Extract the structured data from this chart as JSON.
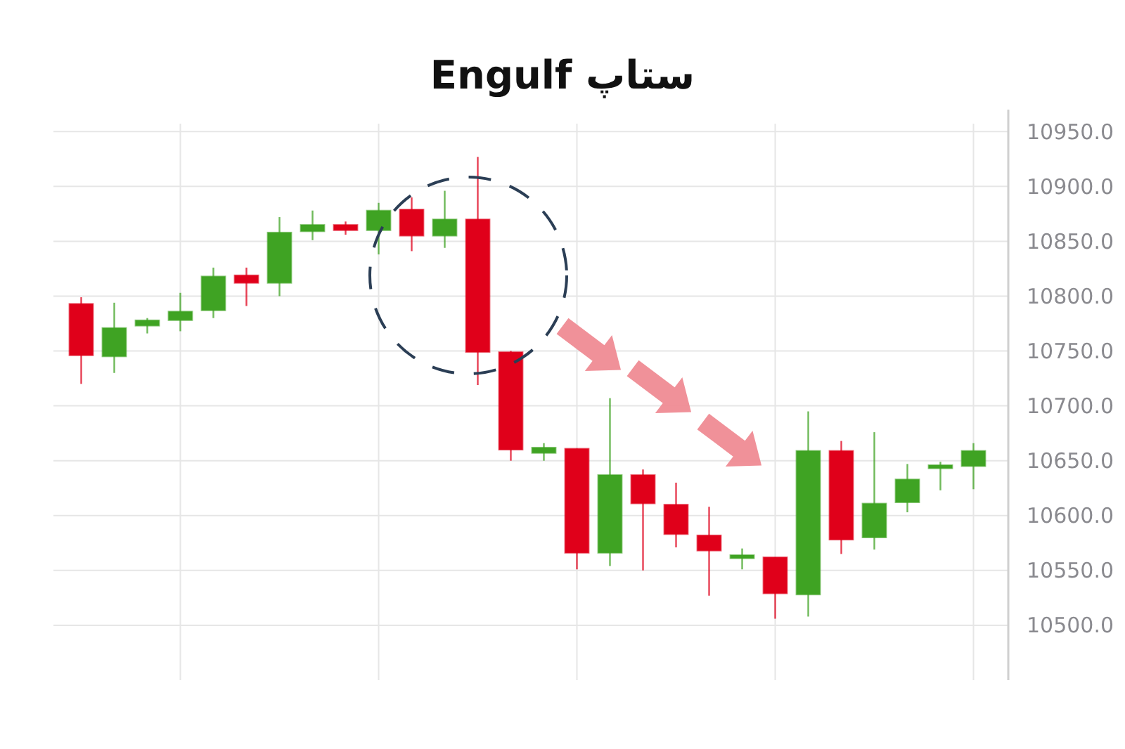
{
  "chart_data": {
    "type": "candlestick",
    "title": "ستاپ Engulf",
    "categories": [
      null,
      null,
      null,
      null,
      null,
      null,
      null,
      null,
      null,
      null,
      null,
      null,
      null,
      null,
      null,
      null,
      null,
      null,
      null,
      null,
      null,
      null,
      null,
      null,
      null,
      null,
      null,
      null
    ],
    "ohlc": [
      [
        10793,
        10799,
        10720,
        10746
      ],
      [
        10745,
        10794,
        10730,
        10771
      ],
      [
        10773,
        10780,
        10766,
        10778
      ],
      [
        10778,
        10803,
        10768,
        10786
      ],
      [
        10787,
        10826,
        10780,
        10818
      ],
      [
        10819,
        10826,
        10791,
        10812
      ],
      [
        10812,
        10872,
        10800,
        10858
      ],
      [
        10859,
        10878,
        10851,
        10865
      ],
      [
        10865,
        10868,
        10856,
        10860
      ],
      [
        10860,
        10885,
        10838,
        10878
      ],
      [
        10879,
        10890,
        10841,
        10855
      ],
      [
        10855,
        10896,
        10844,
        10870
      ],
      [
        10870,
        10927,
        10719,
        10749
      ],
      [
        10749,
        10750,
        10650,
        10660
      ],
      [
        10657,
        10666,
        10650,
        10662
      ],
      [
        10661,
        10661,
        10551,
        10566
      ],
      [
        10566,
        10707,
        10554,
        10637
      ],
      [
        10637,
        10642,
        10550,
        10611
      ],
      [
        10610,
        10630,
        10571,
        10583
      ],
      [
        10582,
        10608,
        10527,
        10568
      ],
      [
        10561,
        10570,
        10551,
        10564
      ],
      [
        10562,
        10562,
        10506,
        10529
      ],
      [
        10528,
        10695,
        10508,
        10659
      ],
      [
        10659,
        10668,
        10565,
        10578
      ],
      [
        10580,
        10676,
        10569,
        10611
      ],
      [
        10612,
        10647,
        10603,
        10633
      ],
      [
        10643,
        10649,
        10623,
        10646
      ],
      [
        10645,
        10666,
        10624,
        10659
      ]
    ],
    "colors": [
      "#e0001a",
      "#3fa323",
      "#3fa323",
      "#3fa323",
      "#3fa323",
      "#e0001a",
      "#3fa323",
      "#3fa323",
      "#e0001a",
      "#3fa323",
      "#e0001a",
      "#3fa323",
      "#e0001a",
      "#e0001a",
      "#3fa323",
      "#e0001a",
      "#3fa323",
      "#e0001a",
      "#e0001a",
      "#e0001a",
      "#3fa323",
      "#e0001a",
      "#3fa323",
      "#e0001a",
      "#3fa323",
      "#3fa323",
      "#3fa323",
      "#3fa323"
    ],
    "ylim": [
      10450,
      10970
    ],
    "yticks": [
      {
        "value": 10500,
        "label": "10500.0"
      },
      {
        "value": 10550,
        "label": "10550.0"
      },
      {
        "value": 10600,
        "label": "10600.0"
      },
      {
        "value": 10650,
        "label": "10650.0"
      },
      {
        "value": 10700,
        "label": "10700.0"
      },
      {
        "value": 10750,
        "label": "10750.0"
      },
      {
        "value": 10800,
        "label": "10800.0"
      },
      {
        "value": 10850,
        "label": "10850.0"
      },
      {
        "value": 10900,
        "label": "10900.0"
      },
      {
        "value": 10950,
        "label": "10950.0"
      }
    ],
    "grid": true
  }
}
